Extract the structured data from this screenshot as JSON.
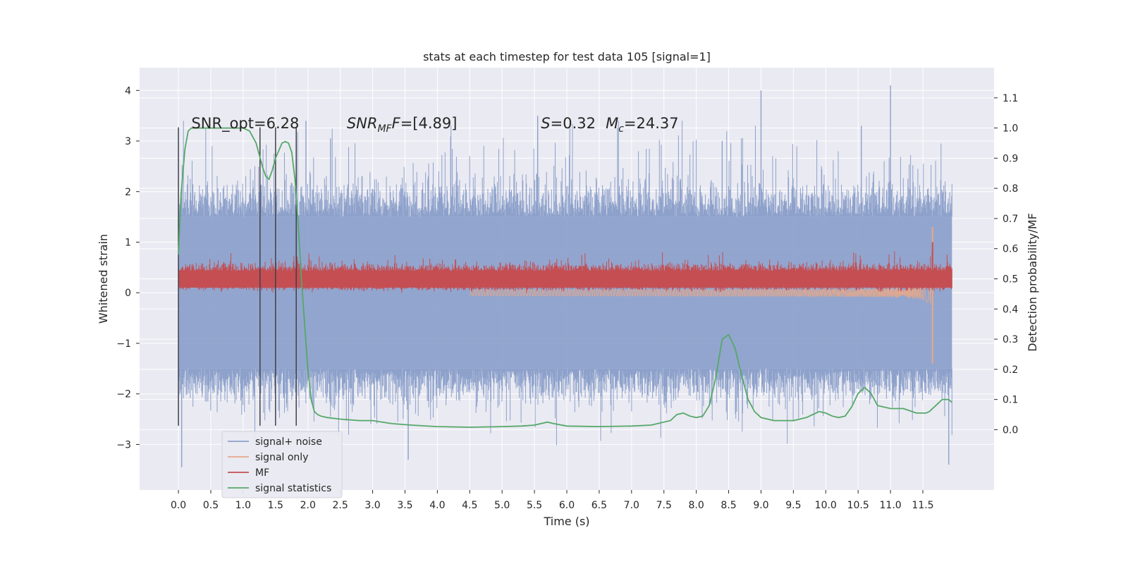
{
  "chart_data": {
    "type": "line",
    "title": "stats at each timestep for test data 105 [signal=1]",
    "xlabel": "Time (s)",
    "ylabel_left": "Whitened strain",
    "ylabel_right": "Detection probability/MF",
    "xlim": [
      -0.6,
      12.6
    ],
    "ylim_left": [
      -3.9,
      4.45
    ],
    "ylim_right": [
      -0.2,
      1.2
    ],
    "x_ticks": [
      "0.0",
      "0.5",
      "1.0",
      "1.5",
      "2.0",
      "2.5",
      "3.0",
      "3.5",
      "4.0",
      "4.5",
      "5.0",
      "5.5",
      "6.0",
      "6.5",
      "7.0",
      "7.5",
      "8.0",
      "8.5",
      "9.0",
      "9.5",
      "10.0",
      "10.5",
      "11.0",
      "11.5"
    ],
    "y_ticks_left": [
      "−3",
      "−2",
      "−1",
      "0",
      "1",
      "2",
      "3",
      "4"
    ],
    "y_ticks_right": [
      "0.0",
      "0.1",
      "0.2",
      "0.3",
      "0.4",
      "0.5",
      "0.6",
      "0.7",
      "0.8",
      "0.9",
      "1.0",
      "1.1"
    ],
    "grid": true,
    "legend_position": "bottom-left",
    "annotations": [
      {
        "text": "SNR_opt=6.28",
        "x": 0.2
      },
      {
        "text": "SNR",
        "sub": "MF",
        "suffix": "F=[4.89]",
        "x": 2.6
      },
      {
        "text": "S",
        "suffix": "=0.32",
        "x": 5.6
      },
      {
        "text": "M",
        "sub": "c",
        "suffix": "=24.37",
        "x": 6.6
      }
    ],
    "vertical_lines_x": [
      0.0,
      1.26,
      1.5,
      1.82
    ],
    "series": [
      {
        "name": "signal+ noise",
        "color": "#8da1cb",
        "axis": "left",
        "envelope_upper": 1.5,
        "envelope_lower": -1.5,
        "peak_max": 4.1,
        "peak_min": -3.45
      },
      {
        "name": "signal only",
        "color": "#e8a889",
        "axis": "left",
        "chirp_end_x": 11.65,
        "chirp_max": 1.3,
        "chirp_min": -1.4
      },
      {
        "name": "MF",
        "color": "#c44e52",
        "axis": "left",
        "baseline": 0.25,
        "band": [
          0.05,
          0.55
        ]
      },
      {
        "name": "signal statistics",
        "color": "#55a868",
        "axis": "right",
        "x": [
          0.0,
          0.04,
          0.1,
          0.15,
          0.2,
          0.3,
          0.5,
          0.8,
          1.0,
          1.1,
          1.2,
          1.3,
          1.35,
          1.4,
          1.45,
          1.5,
          1.6,
          1.65,
          1.7,
          1.75,
          1.8,
          1.85,
          1.9,
          2.0,
          2.05,
          2.1,
          2.15,
          2.2,
          2.3,
          2.5,
          2.8,
          3.0,
          3.3,
          3.6,
          4.0,
          4.5,
          5.0,
          5.3,
          5.5,
          5.7,
          5.8,
          6.0,
          6.5,
          7.0,
          7.3,
          7.6,
          7.7,
          7.8,
          7.9,
          8.0,
          8.1,
          8.2,
          8.3,
          8.4,
          8.5,
          8.6,
          8.7,
          8.8,
          8.9,
          9.0,
          9.2,
          9.5,
          9.7,
          9.8,
          9.9,
          10.0,
          10.1,
          10.2,
          10.3,
          10.4,
          10.5,
          10.6,
          10.7,
          10.8,
          11.0,
          11.2,
          11.4,
          11.55,
          11.6,
          11.7,
          11.8,
          11.9,
          11.95
        ],
        "y": [
          0.58,
          0.78,
          0.93,
          0.99,
          1.0,
          1.0,
          1.0,
          1.0,
          1.0,
          0.99,
          0.95,
          0.87,
          0.84,
          0.83,
          0.86,
          0.9,
          0.95,
          0.955,
          0.95,
          0.92,
          0.83,
          0.68,
          0.5,
          0.2,
          0.1,
          0.06,
          0.05,
          0.045,
          0.04,
          0.035,
          0.03,
          0.03,
          0.02,
          0.015,
          0.01,
          0.008,
          0.01,
          0.012,
          0.015,
          0.025,
          0.02,
          0.012,
          0.01,
          0.012,
          0.015,
          0.03,
          0.05,
          0.055,
          0.045,
          0.04,
          0.045,
          0.08,
          0.17,
          0.3,
          0.315,
          0.27,
          0.18,
          0.1,
          0.06,
          0.04,
          0.03,
          0.03,
          0.04,
          0.05,
          0.06,
          0.055,
          0.045,
          0.04,
          0.045,
          0.075,
          0.12,
          0.14,
          0.12,
          0.08,
          0.07,
          0.07,
          0.055,
          0.055,
          0.06,
          0.08,
          0.1,
          0.1,
          0.09
        ]
      }
    ]
  }
}
